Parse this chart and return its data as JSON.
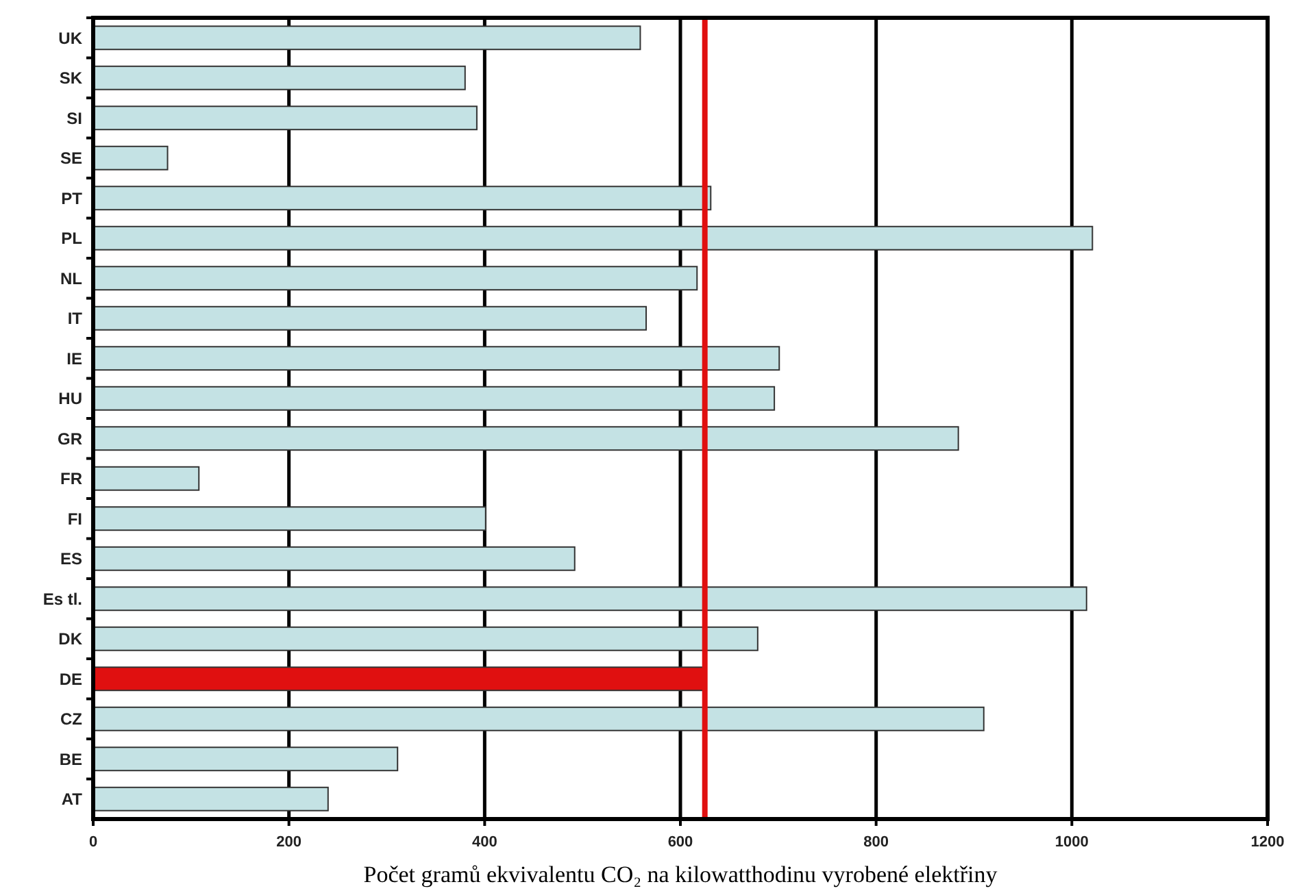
{
  "chart_data": {
    "type": "bar",
    "orientation": "horizontal",
    "xlabel": "Počet gramů ekvivalentu CO₂ na kilowatthodinu vyrobené elektřiny",
    "categories": [
      "UK",
      "SK",
      "SI",
      "SE",
      "PT",
      "PL",
      "NL",
      "IT",
      "IE",
      "HU",
      "GR",
      "FR",
      "FI",
      "ES",
      "Es tl.",
      "DK",
      "DE",
      "CZ",
      "BE",
      "AT"
    ],
    "values": [
      559,
      380,
      392,
      76,
      631,
      1021,
      617,
      565,
      701,
      696,
      884,
      108,
      401,
      492,
      1015,
      679,
      625,
      910,
      311,
      240
    ],
    "colors": [
      "#c4e2e4",
      "#c4e2e4",
      "#c4e2e4",
      "#c4e2e4",
      "#c4e2e4",
      "#c4e2e4",
      "#c4e2e4",
      "#c4e2e4",
      "#c4e2e4",
      "#c4e2e4",
      "#c4e2e4",
      "#c4e2e4",
      "#c4e2e4",
      "#c4e2e4",
      "#c4e2e4",
      "#c4e2e4",
      "#e01010",
      "#c4e2e4",
      "#c4e2e4",
      "#c4e2e4"
    ],
    "xlim": [
      0,
      1200
    ],
    "xticks": [
      0,
      200,
      400,
      600,
      800,
      1000,
      1200
    ],
    "grid": "x",
    "ref_lines": [
      {
        "axis": "x",
        "value": 625,
        "color": "#e01010"
      }
    ]
  }
}
